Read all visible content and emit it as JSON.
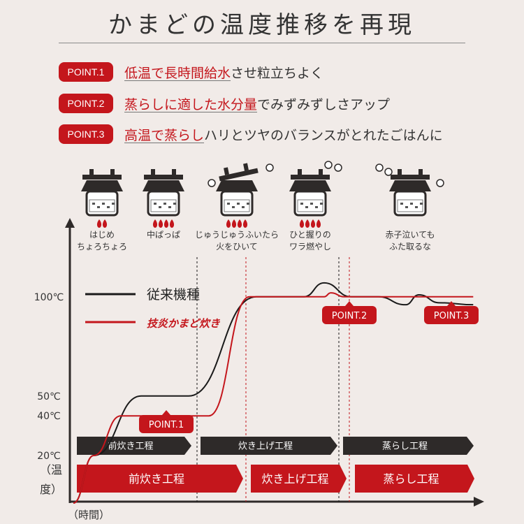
{
  "title": "かまどの温度推移を再現",
  "points": [
    {
      "badge": "POINT.1",
      "highlight": "低温で長時間給水",
      "rest": "させ粒立ちよく"
    },
    {
      "badge": "POINT.2",
      "highlight": "蒸らしに適した水分量",
      "rest": "でみずみずしさアップ"
    },
    {
      "badge": "POINT.3",
      "highlight": "高温で蒸らし",
      "rest": "ハリとツヤのバランスがとれたごはんに"
    }
  ],
  "colors": {
    "accent": "#c4161c",
    "dark": "#2e2a29",
    "conventional": "#1a1a1a",
    "background": "#f1ebe8"
  },
  "pot_captions": [
    [
      "はじめ",
      "ちょろちょろ"
    ],
    [
      "中ぱっぱ"
    ],
    [
      "じゅうじゅうふいたら",
      "火をひいて"
    ],
    [
      "ひと握りの",
      "ワラ燃やし"
    ],
    [
      "赤子泣いても",
      "ふた取るな"
    ]
  ],
  "chart_data": {
    "type": "line",
    "ylabel": "（温度）",
    "xlabel": "（時間）",
    "y_ticks": [
      "20℃",
      "40℃",
      "50℃",
      "100℃"
    ],
    "legend": [
      {
        "name": "従来機種",
        "color": "#1a1a1a"
      },
      {
        "name": "技炎かまど炊き",
        "color": "#c4161c",
        "style": "logo"
      }
    ],
    "markers": [
      "POINT.1",
      "POINT.2",
      "POINT.3"
    ],
    "series": [
      {
        "name": "従来機種",
        "color": "#1a1a1a",
        "points": [
          [
            0,
            0
          ],
          [
            3,
            20
          ],
          [
            10,
            50
          ],
          [
            17,
            50
          ],
          [
            27,
            100
          ],
          [
            34,
            100
          ],
          [
            37,
            107
          ],
          [
            41,
            100
          ],
          [
            45,
            100
          ],
          [
            49,
            96
          ],
          [
            51,
            101
          ],
          [
            54,
            97
          ],
          [
            59,
            96
          ]
        ]
      },
      {
        "name": "技炎かまど炊き",
        "color": "#c4161c",
        "points": [
          [
            0,
            0
          ],
          [
            3,
            20
          ],
          [
            7,
            40
          ],
          [
            20,
            40
          ],
          [
            26,
            100
          ],
          [
            37,
            100
          ],
          [
            38,
            102
          ],
          [
            40,
            100
          ],
          [
            59,
            100
          ]
        ]
      }
    ],
    "stages_upper": [
      "前炊き工程",
      "炊き上げ工程",
      "蒸らし工程"
    ],
    "stages_lower": [
      "前炊き工程",
      "炊き上げ工程",
      "蒸らし工程"
    ]
  }
}
